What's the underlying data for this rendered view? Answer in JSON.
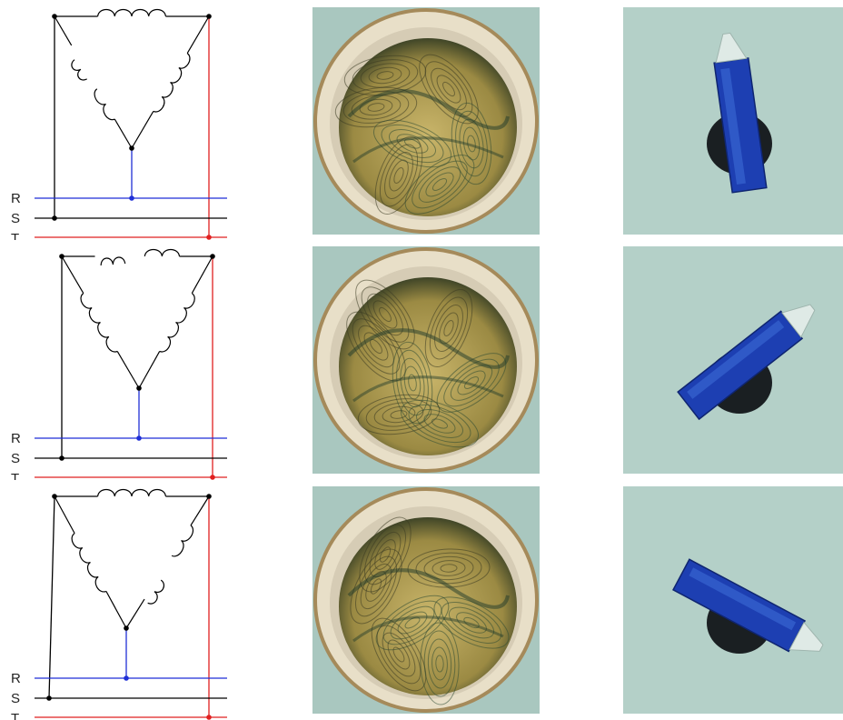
{
  "phase_labels": [
    "R",
    "S",
    "T"
  ],
  "colors": {
    "wire": "#000000",
    "phase_r": "#1f2fd6",
    "phase_t": "#e02020",
    "background": "#ffffff",
    "photo_bg": "#a9c7bf",
    "fluid_dark": "#1b2a1c",
    "fluid_light": "#c9b56a",
    "rotor_blue": "#1d3fb2"
  },
  "rows": [
    {
      "open_coil": "left",
      "rotor_angle_deg": -8
    },
    {
      "open_coil": "top",
      "rotor_angle_deg": 52
    },
    {
      "open_coil": "right",
      "rotor_angle_deg": 118
    }
  ]
}
